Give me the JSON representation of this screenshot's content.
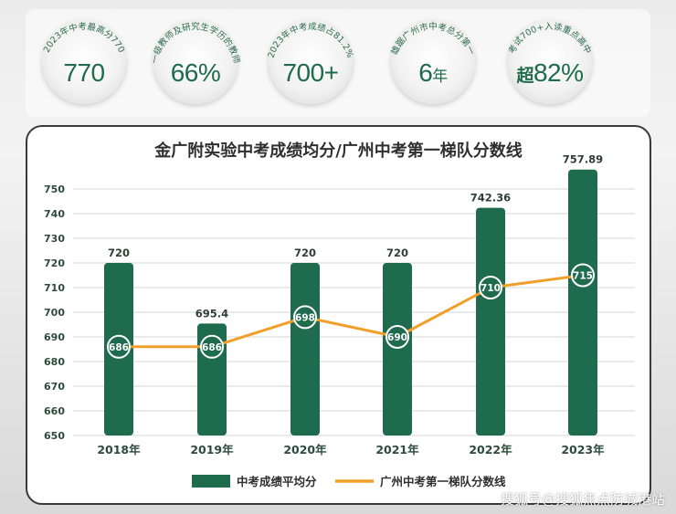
{
  "stats": [
    {
      "caption": "2023年中考最高分770",
      "value": "770",
      "value_prefix": "",
      "value_suffix": ""
    },
    {
      "caption": "一级教师及研究生学历的教师",
      "value": "66%",
      "value_prefix": "",
      "value_suffix": ""
    },
    {
      "caption": "2023年中考成绩占81.2%",
      "value": "700+",
      "value_prefix": "",
      "value_suffix": ""
    },
    {
      "caption": "雄踞广州市中考总分第一",
      "value": "6",
      "value_prefix": "",
      "value_suffix": "年"
    },
    {
      "caption": "考试700+入读重点高中",
      "value": "82%",
      "value_prefix": "超",
      "value_suffix": ""
    }
  ],
  "colors": {
    "bar": "#1f6b4e",
    "line": "#f0a02a",
    "text_green": "#1f6b4e"
  },
  "watermark": "搜狐号@搜狐焦点防城港站",
  "chart_data": {
    "type": "bar",
    "title": "金广附实验中考成绩均分/广州中考第一梯队分数线",
    "categories": [
      "2018年",
      "2019年",
      "2020年",
      "2021年",
      "2022年",
      "2023年"
    ],
    "series": [
      {
        "name": "中考成绩平均分",
        "type": "bar",
        "values": [
          720,
          695.4,
          720,
          720,
          742.36,
          757.89
        ],
        "labels": [
          "720",
          "695.4",
          "720",
          "720",
          "742.36",
          "757.89"
        ]
      },
      {
        "name": "广州中考第一梯队分数线",
        "type": "line",
        "values": [
          686,
          686,
          698,
          690,
          710,
          715
        ],
        "labels": [
          "686",
          "686",
          "698",
          "690",
          "710",
          "715"
        ]
      }
    ],
    "ylim": [
      650,
      757.89
    ],
    "yticks": [
      "650",
      "660",
      "670",
      "680",
      "690",
      "700",
      "710",
      "720",
      "730",
      "740",
      "750"
    ],
    "grid": true,
    "legend": "bottom"
  }
}
